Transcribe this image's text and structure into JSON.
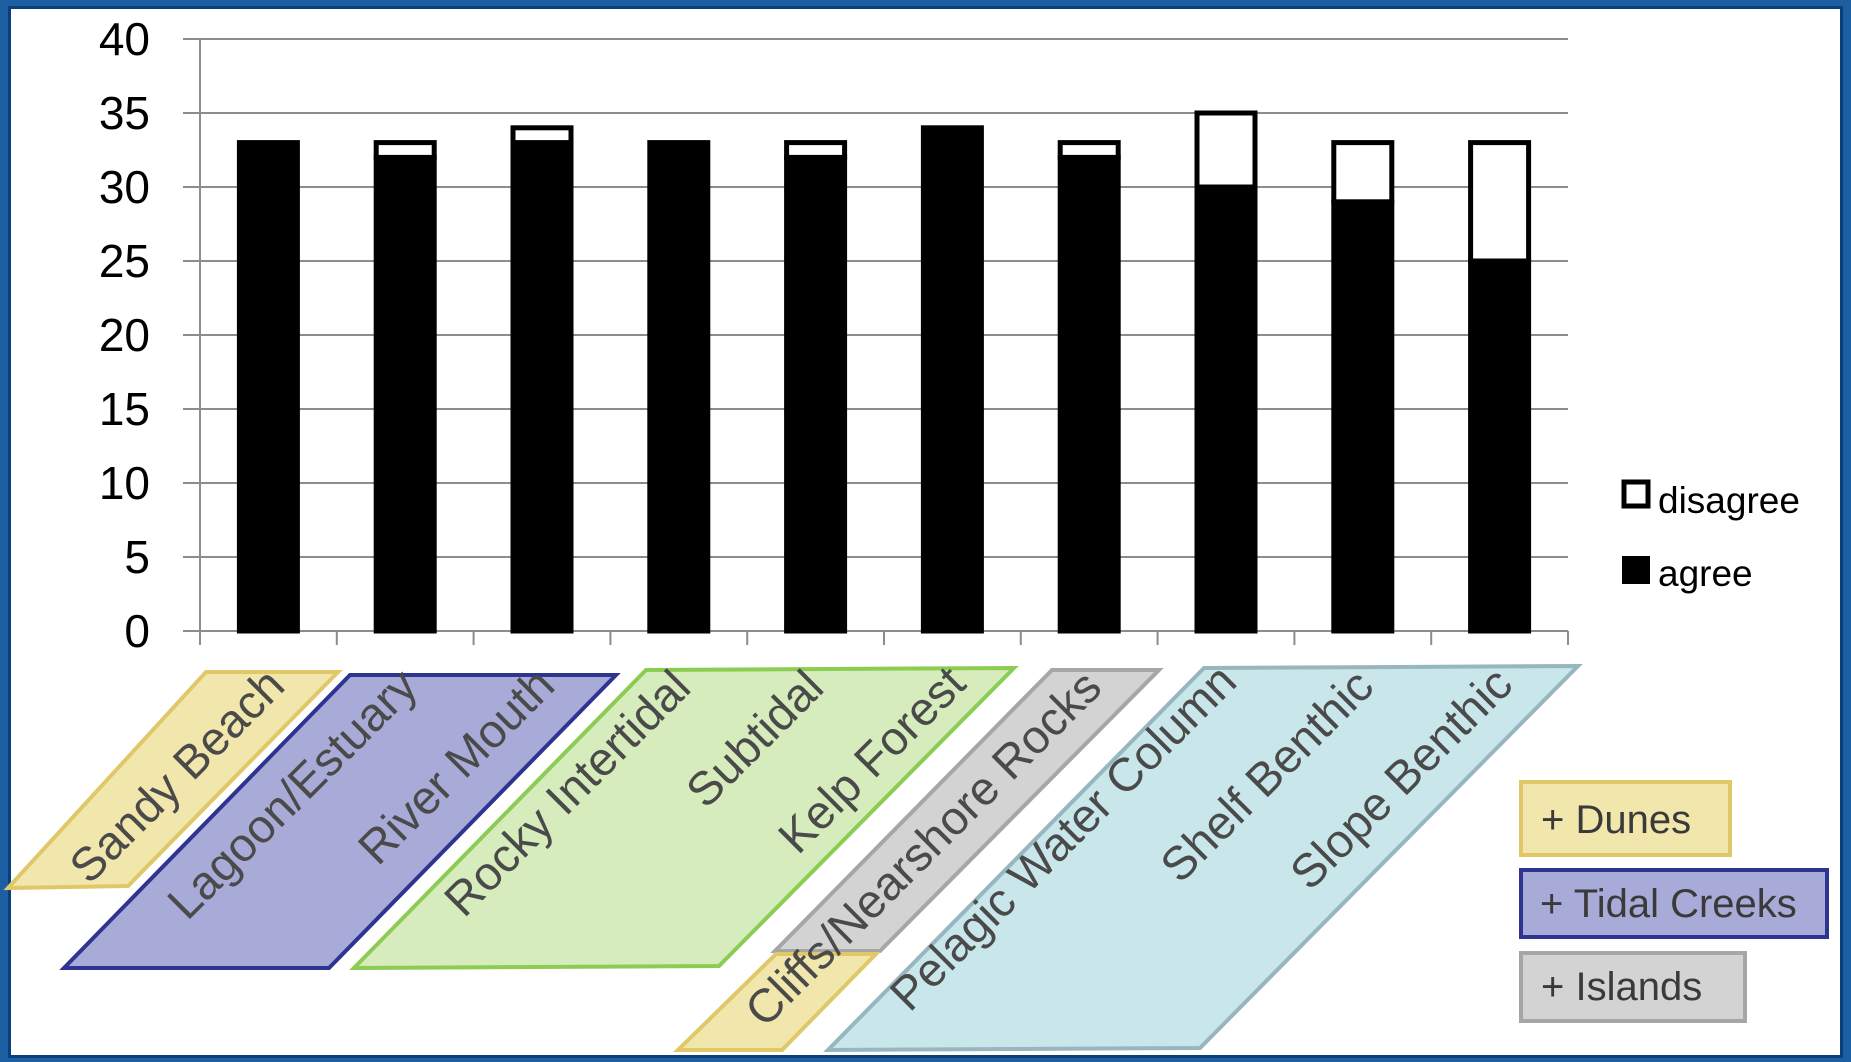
{
  "chart_data": {
    "type": "bar",
    "stacked": true,
    "categories": [
      "Sandy Beach",
      "Lagoon/Estuary",
      "River Mouth",
      "Rocky Intertidal",
      "Subtidal",
      "Kelp Forest",
      "Cliffs/Nearshore Rocks",
      "Pelagic Water Column",
      "Shelf Benthic",
      "Slope Benthic"
    ],
    "series": [
      {
        "name": "agree",
        "color": "#000000",
        "values": [
          33,
          32,
          33,
          33,
          32,
          34,
          32,
          30,
          29,
          25
        ]
      },
      {
        "name": "disagree",
        "color": "#ffffff",
        "values": [
          0,
          1,
          1,
          0,
          1,
          0,
          1,
          5,
          4,
          8
        ]
      }
    ],
    "ylim": [
      0,
      40
    ],
    "yticks": [
      "0",
      "5",
      "10",
      "15",
      "20",
      "25",
      "30",
      "35",
      "40"
    ],
    "grid": true,
    "legend_position": "right"
  },
  "groups": [
    {
      "id": "sandy",
      "color": "#f1e6ac",
      "border": "#e0c869"
    },
    {
      "id": "estuary",
      "color": "#a8abd8",
      "border": "#2d3590"
    },
    {
      "id": "rocky",
      "color": "#d6ecbc",
      "border": "#8ccc52"
    },
    {
      "id": "cliffs-gray",
      "color": "#d3d3d3",
      "border": "#a6a6a6"
    },
    {
      "id": "cliffs-yellow",
      "color": "#f1e6ac",
      "border": "#e0c869"
    },
    {
      "id": "offshore",
      "color": "#c9e6ea",
      "border": "#97b6bf"
    }
  ],
  "boxes": [
    {
      "label": "+ Dunes",
      "color": "#f1e6ac",
      "border": "#e0c869"
    },
    {
      "label": "+ Tidal Creeks",
      "color": "#a8abd8",
      "border": "#2d3590"
    },
    {
      "label": "+ Islands",
      "color": "#d3d3d3",
      "border": "#a6a6a6"
    }
  ]
}
